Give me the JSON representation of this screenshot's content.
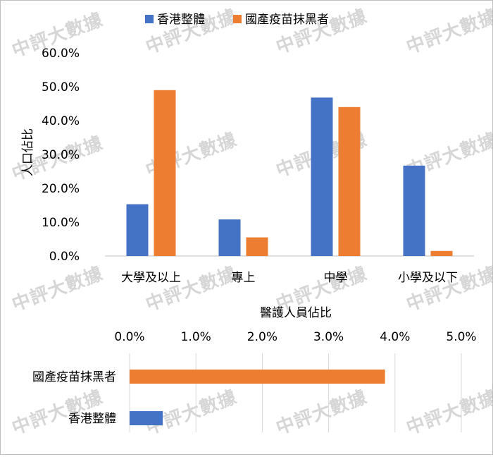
{
  "watermark_text": "中評大數據",
  "colors": {
    "hk": "#4472C4",
    "cn": "#ED7D31",
    "grid": "#d9d9d9",
    "axis": "#bfbfbf"
  },
  "legend": {
    "series_hk": "香港整體",
    "series_cn": "國產疫苗抹黑者"
  },
  "chart_data": [
    {
      "type": "bar",
      "ylabel": "人口佔比",
      "ylim": [
        0,
        60
      ],
      "yticks": [
        "0.0%",
        "10.0%",
        "20.0%",
        "30.0%",
        "40.0%",
        "50.0%",
        "60.0%"
      ],
      "categories": [
        "大學及以上",
        "專上",
        "中學",
        "小學及以下"
      ],
      "series": [
        {
          "name": "香港整體",
          "values": [
            15.3,
            10.8,
            46.8,
            26.7
          ]
        },
        {
          "name": "國產疫苗抹黑者",
          "values": [
            49.0,
            5.5,
            44.0,
            1.5
          ]
        }
      ],
      "legend": "top",
      "grid": false
    },
    {
      "type": "bar",
      "orientation": "horizontal",
      "title": "醫護人員佔比",
      "xlim": [
        0,
        5
      ],
      "xticks": [
        "0.0%",
        "1.0%",
        "2.0%",
        "3.0%",
        "4.0%",
        "5.0%"
      ],
      "categories": [
        "國產疫苗抹黑者",
        "香港整體"
      ],
      "values": [
        3.85,
        0.5
      ],
      "grid": true
    }
  ]
}
